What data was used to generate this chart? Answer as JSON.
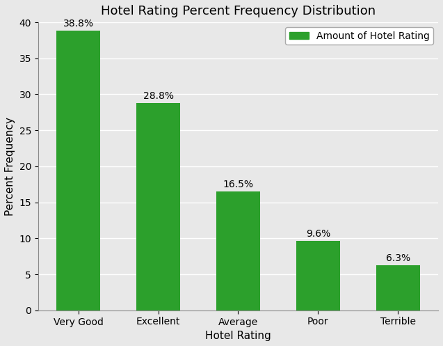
{
  "categories": [
    "Very Good",
    "Excellent",
    "Average",
    "Poor",
    "Terrible"
  ],
  "values": [
    38.8,
    28.8,
    16.5,
    9.6,
    6.3
  ],
  "labels": [
    "38.8%",
    "28.8%",
    "16.5%",
    "9.6%",
    "6.3%"
  ],
  "bar_color": "#2ca02c",
  "title": "Hotel Rating Percent Frequency Distribution",
  "xlabel": "Hotel Rating",
  "ylabel": "Percent Frequency",
  "ylim": [
    0,
    40
  ],
  "yticks": [
    0,
    5,
    10,
    15,
    20,
    25,
    30,
    35,
    40
  ],
  "legend_label": "Amount of Hotel Rating",
  "axes_bg_color": "#e8e8e8",
  "fig_bg_color": "#e8e8e8",
  "grid_color": "#ffffff",
  "title_fontsize": 13,
  "label_fontsize": 11,
  "tick_fontsize": 10,
  "bar_width": 0.55,
  "figsize": [
    6.37,
    4.97
  ],
  "dpi": 100
}
